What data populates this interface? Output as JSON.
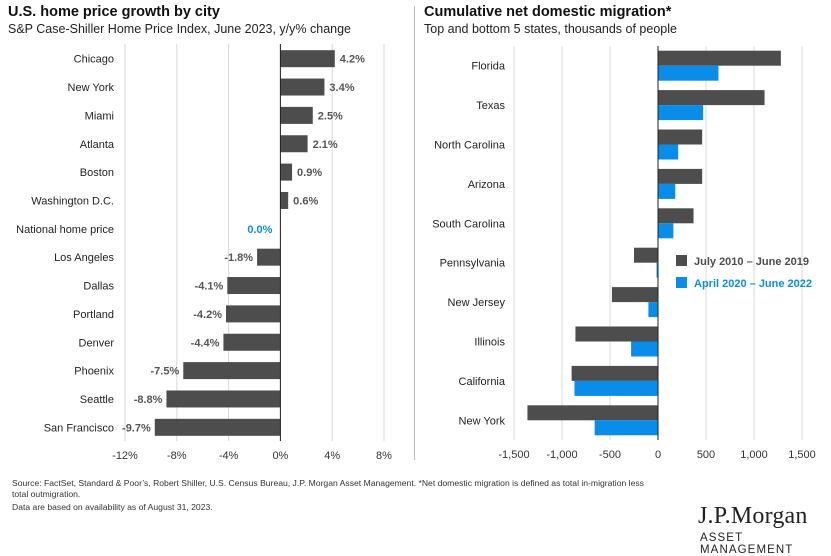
{
  "colors": {
    "gray": "#4d4d4d",
    "blue": "#0a8de8",
    "label": "#555555",
    "grid": "#d9d9d9"
  },
  "left": {
    "title": "U.S. home price growth by city",
    "subtitle": "S&P Case-Shiller Home Price Index, June 2023, y/y% change"
  },
  "right": {
    "title": "Cumulative net domestic migration*",
    "subtitle": "Top and bottom 5 states, thousands of people"
  },
  "footnote": {
    "line1": "Source: FactSet, Standard & Poor’s, Robert Shiller, U.S. Census Bureau, J.P. Morgan Asset Management. *Net domestic migration is defined as total in-migration less",
    "line2": "total outmigration.",
    "line3": "Data are based on availability as of August 31, 2023."
  },
  "logo": {
    "main": "J.P.Morgan",
    "sub": "ASSET MANAGEMENT"
  },
  "chart_data": [
    {
      "type": "bar",
      "orientation": "horizontal",
      "title": "U.S. home price growth by city",
      "subtitle": "S&P Case-Shiller Home Price Index, June 2023, y/y% change",
      "categories": [
        "Chicago",
        "New York",
        "Miami",
        "Atlanta",
        "Boston",
        "Washington D.C.",
        "National home price",
        "Los Angeles",
        "Dallas",
        "Portland",
        "Denver",
        "Phoenix",
        "Seattle",
        "San Francisco"
      ],
      "values": [
        4.2,
        3.4,
        2.5,
        2.1,
        0.9,
        0.6,
        0.0,
        -1.8,
        -4.1,
        -4.2,
        -4.4,
        -7.5,
        -8.8,
        -9.7
      ],
      "data_labels": [
        "4.2%",
        "3.4%",
        "2.5%",
        "2.1%",
        "0.9%",
        "0.6%",
        "0.0%",
        "-1.8%",
        "-4.1%",
        "-4.2%",
        "-4.4%",
        "-7.5%",
        "-8.8%",
        "-9.7%"
      ],
      "highlight": "National home price",
      "xlim": [
        -12,
        8
      ],
      "xticks": [
        -12,
        -8,
        -4,
        0,
        4,
        8
      ],
      "xtick_labels": [
        "-12%",
        "-8%",
        "-4%",
        "0%",
        "4%",
        "8%"
      ],
      "grid": true
    },
    {
      "type": "bar",
      "orientation": "horizontal",
      "title": "Cumulative net domestic migration*",
      "subtitle": "Top and bottom 5 states, thousands of people",
      "categories": [
        "Florida",
        "Texas",
        "North Carolina",
        "Arizona",
        "South Carolina",
        "Pennsylvania",
        "New Jersey",
        "Illinois",
        "California",
        "New York"
      ],
      "series": [
        {
          "name": "July 2010 – June 2019",
          "values": [
            1280,
            1110,
            460,
            460,
            370,
            -250,
            -480,
            -860,
            -900,
            -1360
          ]
        },
        {
          "name": "April 2020 – June 2022",
          "values": [
            630,
            470,
            210,
            180,
            160,
            -15,
            -100,
            -280,
            -870,
            -660
          ]
        }
      ],
      "xlim": [
        -1500,
        1500
      ],
      "xticks": [
        -1500,
        -1000,
        -500,
        0,
        500,
        1000,
        1500
      ],
      "xtick_labels": [
        "-1,500",
        "-1,000",
        "-500",
        "0",
        "500",
        "1,000",
        "1,500"
      ],
      "legend_position": "right",
      "grid": true
    }
  ]
}
